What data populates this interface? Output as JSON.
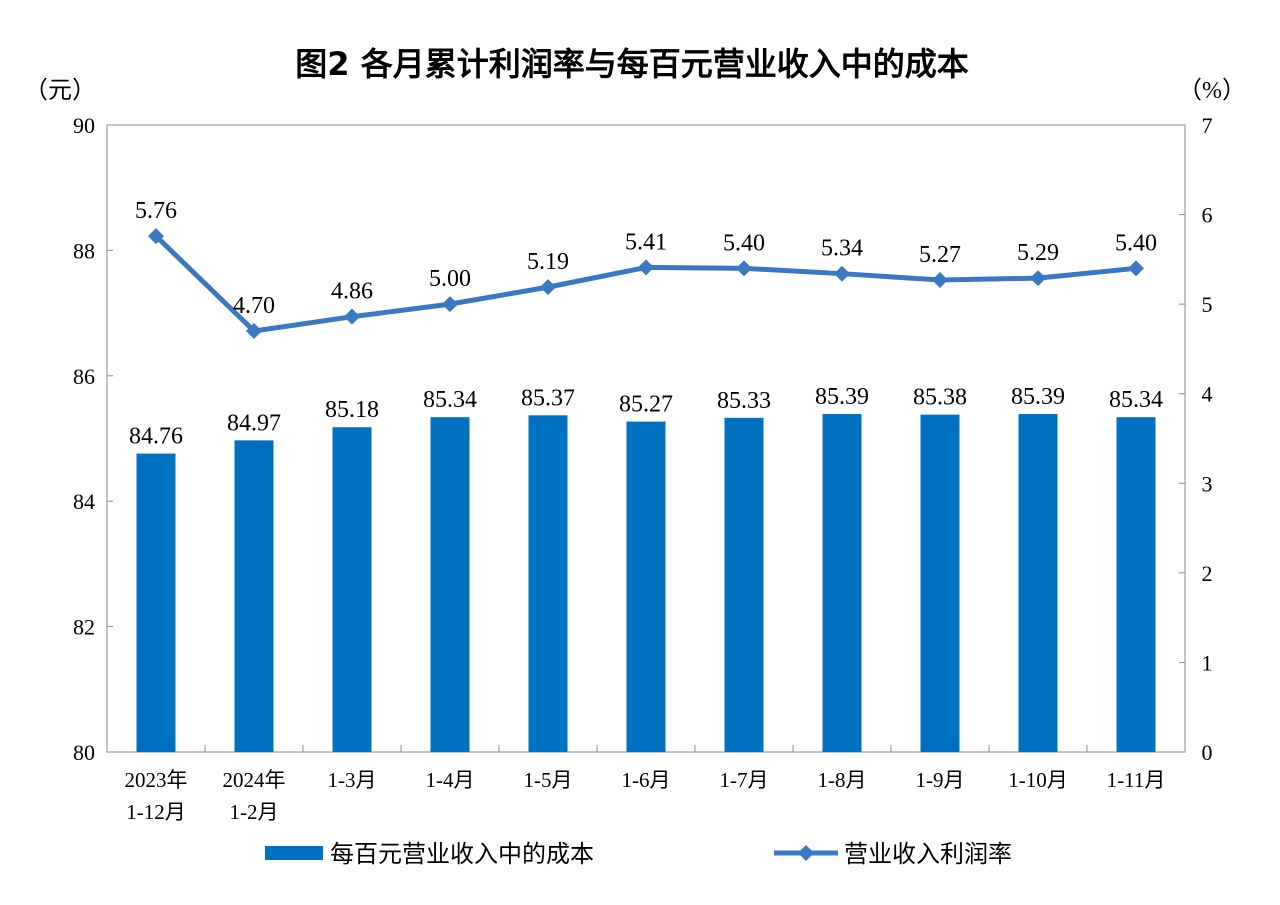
{
  "chart_data": {
    "type": "bar+line",
    "title": "图2  各月累计利润率与每百元营业收入中的成本",
    "ylabel_left": "（元）",
    "ylabel_right": "（%）",
    "ylim_left": [
      80,
      90
    ],
    "yticks_left": [
      "80",
      "82",
      "84",
      "86",
      "88",
      "90"
    ],
    "ylim_right": [
      0,
      7
    ],
    "yticks_right": [
      "0",
      "1",
      "2",
      "3",
      "4",
      "5",
      "6",
      "7"
    ],
    "categories": [
      [
        "2023年",
        "1-12月"
      ],
      [
        "2024年",
        "1-2月"
      ],
      [
        "1-3月"
      ],
      [
        "1-4月"
      ],
      [
        "1-5月"
      ],
      [
        "1-6月"
      ],
      [
        "1-7月"
      ],
      [
        "1-8月"
      ],
      [
        "1-9月"
      ],
      [
        "1-10月"
      ],
      [
        "1-11月"
      ]
    ],
    "series": [
      {
        "name": "每百元营业收入中的成本",
        "type": "bar",
        "axis": "left",
        "color": "#0070c0",
        "values": [
          84.76,
          84.97,
          85.18,
          85.34,
          85.37,
          85.27,
          85.33,
          85.39,
          85.38,
          85.39,
          85.34
        ]
      },
      {
        "name": "营业收入利润率",
        "type": "line",
        "axis": "right",
        "color": "#3b78c3",
        "marker": "diamond",
        "values": [
          5.76,
          4.7,
          4.86,
          5.0,
          5.19,
          5.41,
          5.4,
          5.34,
          5.27,
          5.29,
          5.4
        ]
      }
    ],
    "grid": false,
    "legend": "bottom"
  }
}
